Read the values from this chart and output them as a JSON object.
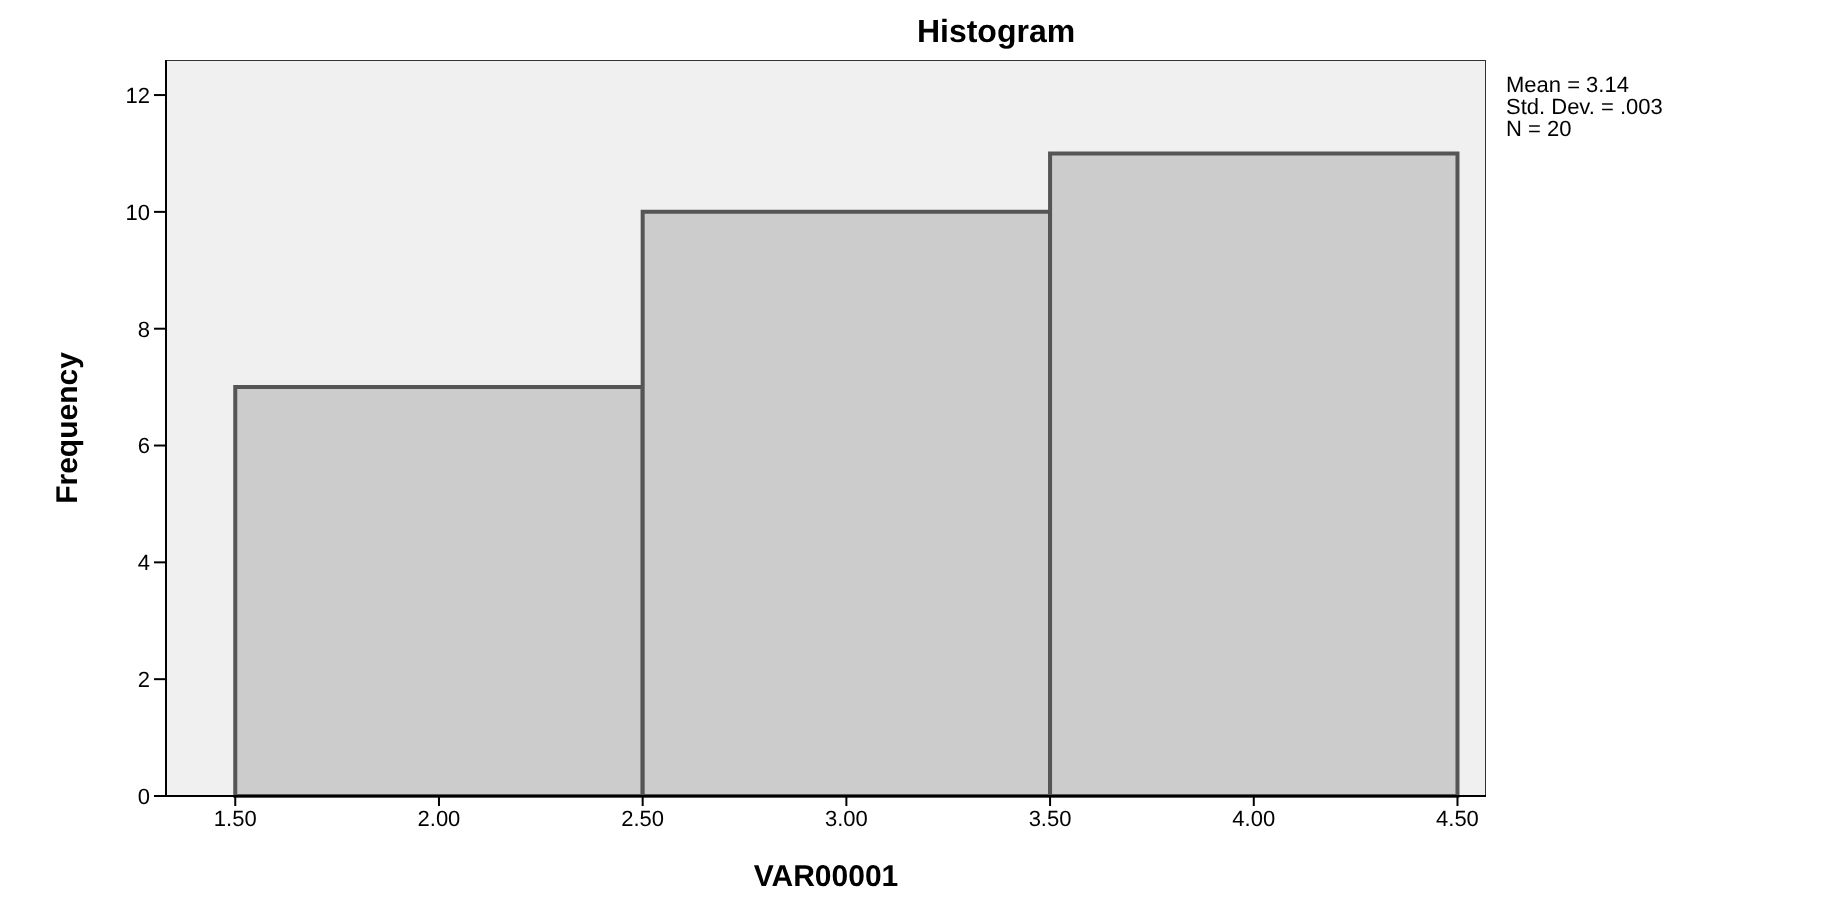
{
  "chart_data": {
    "type": "histogram",
    "title": "Histogram",
    "xlabel": "VAR00001",
    "ylabel": "Frequency",
    "bins": [
      1.5,
      2.5,
      3.5,
      4.5
    ],
    "values": [
      7,
      10,
      11
    ],
    "color": "#cccccc",
    "xlim": [
      1.33,
      4.57
    ],
    "xticks": [
      {
        "value": 1.5,
        "label": "1.50"
      },
      {
        "value": 2,
        "label": "2.00"
      },
      {
        "value": 2.5,
        "label": "2.50"
      },
      {
        "value": 3,
        "label": "3.00"
      },
      {
        "value": 3.5,
        "label": "3.50"
      },
      {
        "value": 4,
        "label": "4.00"
      },
      {
        "value": 4.5,
        "label": "4.50"
      }
    ],
    "ylim": [
      0,
      12.6
    ],
    "yticks": [
      0,
      2,
      4,
      6,
      8,
      10,
      12
    ],
    "annotations": [
      "Mean = 3.14\nStd. Dev. = .003\nN = 20"
    ]
  }
}
